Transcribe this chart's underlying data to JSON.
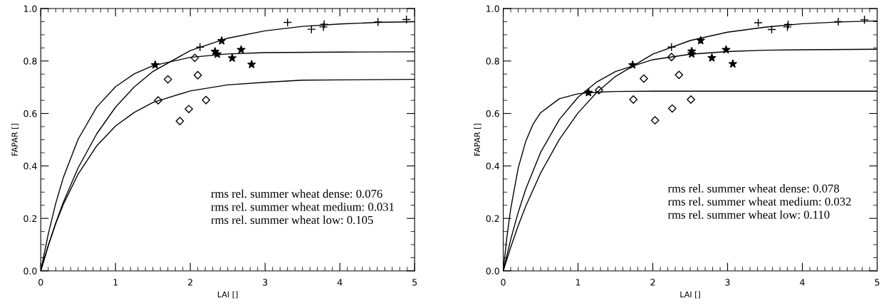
{
  "chart_data": [
    {
      "type": "scatter",
      "xlabel": "LAI []",
      "ylabel": "FAPAR []",
      "xlim": [
        0,
        5
      ],
      "ylim": [
        0,
        1
      ],
      "xticks": [
        0,
        1,
        2,
        3,
        4,
        5
      ],
      "yticks": [
        {
          "value": 0,
          "label": "0.0"
        },
        {
          "value": 0.2,
          "label": "0.2"
        },
        {
          "value": 0.4,
          "label": "0.4"
        },
        {
          "value": 0.6,
          "label": "0.6"
        },
        {
          "value": 0.8,
          "label": "0.8"
        },
        {
          "value": 1,
          "label": "1.0"
        }
      ],
      "grid": false,
      "annotations": [
        "rms rel. summer wheat dense: 0.076",
        "rms rel. summer wheat medium: 0.031",
        "rms rel. summer wheat low: 0.105"
      ],
      "series": [
        {
          "marker": "cross",
          "color": "#000000",
          "x": [
            2.13,
            3.3,
            3.62,
            3.79,
            3.78,
            4.51,
            4.89
          ],
          "values": [
            0.853,
            0.947,
            0.921,
            0.94,
            0.93,
            0.949,
            0.958
          ]
        },
        {
          "marker": "star",
          "color": "#000000",
          "x": [
            1.53,
            2.42,
            2.33,
            2.36,
            2.56,
            2.68,
            2.82
          ],
          "values": [
            0.785,
            0.877,
            0.836,
            0.826,
            0.811,
            0.843,
            0.787
          ]
        },
        {
          "marker": "diamond",
          "color": "#000000",
          "x": [
            1.57,
            1.7,
            2.06,
            2.1,
            2.21,
            1.98,
            1.86
          ],
          "values": [
            0.65,
            0.73,
            0.812,
            0.746,
            0.651,
            0.617,
            0.571
          ]
        },
        {
          "type": "line",
          "marker": "none",
          "color": "#000000",
          "x": [
            0,
            0.1,
            0.2,
            0.3,
            0.5,
            0.75,
            1,
            1.25,
            1.5,
            2,
            2.5,
            3,
            3.5,
            4,
            4.5,
            5
          ],
          "values": [
            0,
            0.096,
            0.182,
            0.26,
            0.393,
            0.523,
            0.624,
            0.701,
            0.76,
            0.84,
            0.887,
            0.915,
            0.932,
            0.941,
            0.947,
            0.95
          ]
        },
        {
          "type": "line",
          "marker": "none",
          "color": "#000000",
          "x": [
            0,
            0.1,
            0.2,
            0.3,
            0.5,
            0.75,
            1,
            1.25,
            1.5,
            2,
            2.5,
            3,
            4,
            5
          ],
          "values": [
            0,
            0.14,
            0.257,
            0.354,
            0.502,
            0.625,
            0.702,
            0.751,
            0.782,
            0.814,
            0.827,
            0.832,
            0.834,
            0.835
          ]
        },
        {
          "type": "line",
          "marker": "none",
          "color": "#000000",
          "x": [
            0,
            0.1,
            0.2,
            0.3,
            0.5,
            0.75,
            1,
            1.25,
            1.5,
            2,
            2.5,
            3,
            3.5,
            4,
            5
          ],
          "values": [
            0,
            0.096,
            0.18,
            0.252,
            0.369,
            0.477,
            0.552,
            0.604,
            0.642,
            0.686,
            0.709,
            0.719,
            0.727,
            0.728,
            0.73
          ]
        }
      ]
    },
    {
      "type": "scatter",
      "xlabel": "LAI []",
      "ylabel": "FAPAR []",
      "xlim": [
        0,
        5
      ],
      "ylim": [
        0,
        1
      ],
      "xticks": [
        0,
        1,
        2,
        3,
        4,
        5
      ],
      "yticks": [
        {
          "value": 0,
          "label": "0.0"
        },
        {
          "value": 0.2,
          "label": "0.2"
        },
        {
          "value": 0.4,
          "label": "0.4"
        },
        {
          "value": 0.6,
          "label": "0.6"
        },
        {
          "value": 0.8,
          "label": "0.8"
        },
        {
          "value": 1,
          "label": "1.0"
        }
      ],
      "grid": false,
      "annotations": [
        "rms rel. summer wheat dense: 0.078",
        "rms rel. summer wheat medium: 0.032",
        "rms rel. summer wheat low: 0.110"
      ],
      "series": [
        {
          "marker": "cross",
          "color": "#000000",
          "x": [
            2.25,
            3.41,
            3.59,
            3.81,
            3.8,
            4.48,
            4.83
          ],
          "values": [
            0.853,
            0.946,
            0.92,
            0.939,
            0.93,
            0.95,
            0.957
          ]
        },
        {
          "marker": "star",
          "color": "#000000",
          "x": [
            1.14,
            1.73,
            2.64,
            2.52,
            2.52,
            2.79,
            2.98,
            3.07
          ],
          "values": [
            0.68,
            0.785,
            0.878,
            0.837,
            0.827,
            0.812,
            0.843,
            0.789
          ]
        },
        {
          "marker": "diamond",
          "color": "#000000",
          "x": [
            1.28,
            1.88,
            2.25,
            2.35,
            2.51,
            1.74,
            2.26,
            2.03
          ],
          "values": [
            0.689,
            0.733,
            0.815,
            0.747,
            0.653,
            0.653,
            0.619,
            0.574
          ]
        },
        {
          "type": "line",
          "marker": "none",
          "color": "#000000",
          "x": [
            0,
            0.1,
            0.2,
            0.3,
            0.5,
            0.75,
            1,
            1.25,
            1.5,
            2,
            2.5,
            3,
            3.5,
            4,
            4.5,
            5
          ],
          "values": [
            0,
            0.09,
            0.172,
            0.246,
            0.373,
            0.501,
            0.602,
            0.68,
            0.741,
            0.826,
            0.878,
            0.91,
            0.929,
            0.942,
            0.949,
            0.953
          ]
        },
        {
          "type": "line",
          "marker": "none",
          "color": "#000000",
          "x": [
            0,
            0.1,
            0.2,
            0.3,
            0.5,
            0.75,
            1,
            1.25,
            1.5,
            2,
            2.5,
            3,
            3.5,
            4,
            5
          ],
          "values": [
            0,
            0.12,
            0.223,
            0.311,
            0.452,
            0.577,
            0.662,
            0.72,
            0.76,
            0.805,
            0.826,
            0.836,
            0.841,
            0.843,
            0.845
          ]
        },
        {
          "type": "line",
          "marker": "none",
          "color": "#000000",
          "x": [
            0,
            0.05,
            0.1,
            0.2,
            0.3,
            0.4,
            0.5,
            0.75,
            1,
            1.25,
            1.5,
            2,
            5
          ],
          "values": [
            0,
            0.131,
            0.237,
            0.392,
            0.493,
            0.56,
            0.603,
            0.656,
            0.675,
            0.681,
            0.684,
            0.685,
            0.685
          ]
        }
      ]
    }
  ]
}
